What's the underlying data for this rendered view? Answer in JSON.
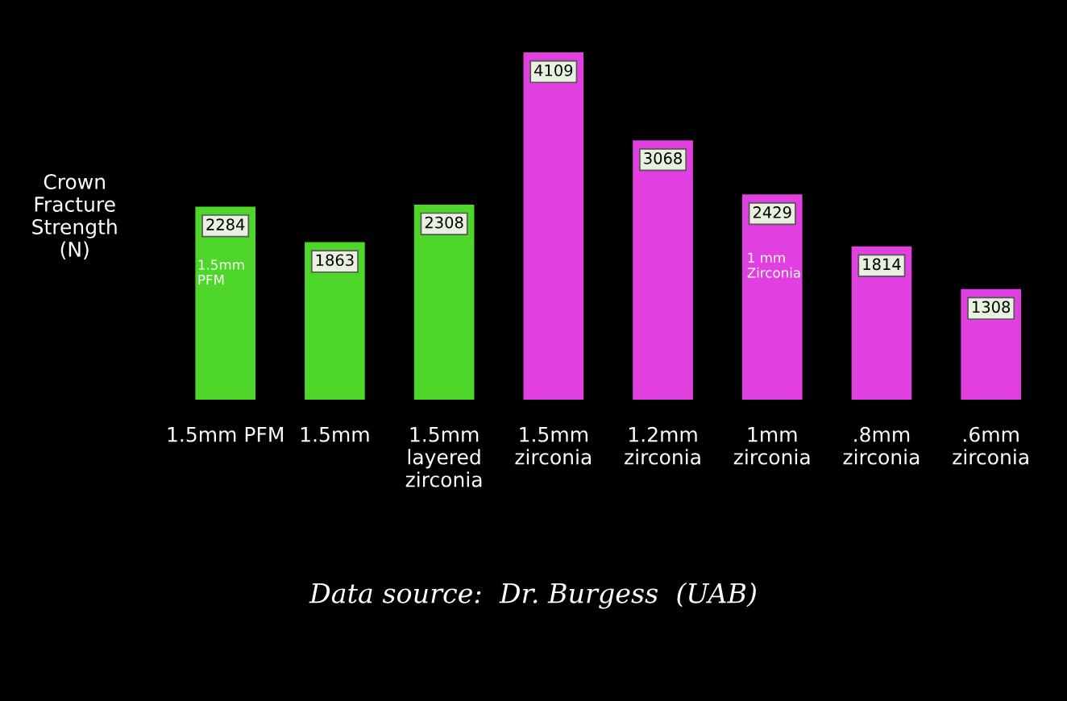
{
  "chart_data": {
    "type": "bar",
    "ylabel": "Crown\nFracture\nStrength\n(N)",
    "categories": [
      "1.5mm PFM",
      "1.5mm",
      "1.5mm\nlayered\nzirconia",
      "1.5mm\nzirconia",
      "1.2mm\nzirconia",
      "1mm\nzirconia",
      ".8mm\nzirconia",
      ".6mm\nzirconia"
    ],
    "values": [
      2284,
      1863,
      2308,
      4109,
      3068,
      2429,
      1814,
      1308
    ],
    "colors": [
      "#4fd62a",
      "#4fd62a",
      "#4fd62a",
      "#e23fe0",
      "#e23fe0",
      "#e23fe0",
      "#e23fe0",
      "#e23fe0"
    ],
    "data_labels": true,
    "annotations": [
      "1.5mm\nPFM",
      "1 mm\nZirconia",
      "Data source:  Dr. Burgess  (UAB)"
    ]
  }
}
